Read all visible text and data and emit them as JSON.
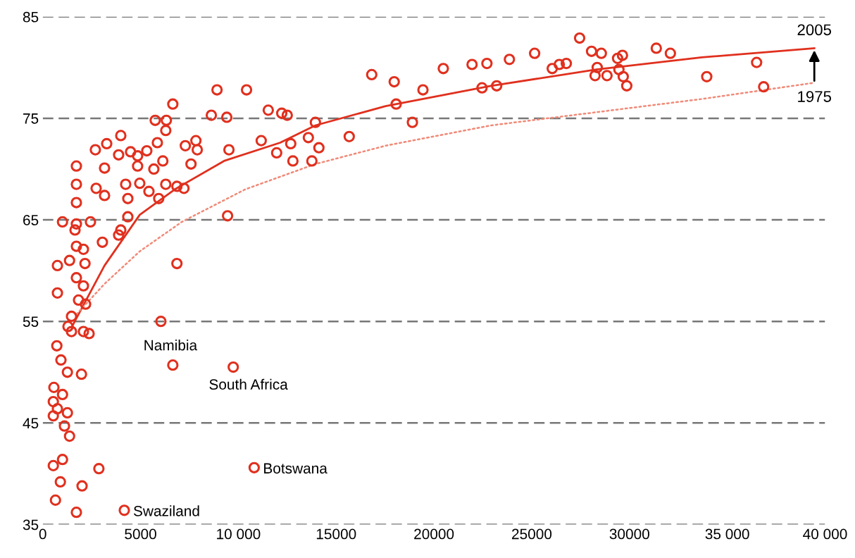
{
  "chart_data": {
    "type": "scatter",
    "xlim": [
      0,
      40000
    ],
    "ylim": [
      35,
      85
    ],
    "xticks": [
      0,
      5000,
      {
        "value": 10000,
        "label": "10 000"
      },
      15000,
      20000,
      25000,
      30000,
      {
        "value": 35000,
        "label": "35 000"
      },
      {
        "value": 40000,
        "label": "40 000"
      }
    ],
    "yticks": [
      35,
      45,
      55,
      65,
      75,
      85
    ],
    "grid": "y",
    "legend": false,
    "series": [
      {
        "color": "#e0301e",
        "marker": "circle",
        "x": [
          27450,
          28060,
          28560,
          29390,
          29640,
          28350,
          28240,
          28850,
          29460,
          29680,
          29860,
          26770,
          26050,
          26410,
          25150,
          23860,
          22710,
          21950,
          22460,
          23210,
          20480,
          19440,
          18900,
          18070,
          17970,
          16820,
          15670,
          31370,
          32090,
          33950,
          36500,
          36860,
          13940,
          13580,
          14120,
          12680,
          11960,
          12790,
          13760,
          12220,
          11530,
          12500,
          11170,
          10420,
          8910,
          9410,
          8620,
          9520,
          9450,
          6650,
          5750,
          6320,
          3990,
          2690,
          3270,
          3880,
          4490,
          4850,
          5320,
          5860,
          6140,
          6290,
          7290,
          7830,
          7900,
          7580,
          3160,
          4850,
          5680,
          1720,
          1720,
          1720,
          2730,
          3160,
          4240,
          4350,
          4960,
          5430,
          5930,
          6290,
          6860,
          7220,
          1010,
          1720,
          2440,
          1650,
          4350,
          3990,
          3050,
          3880,
          1720,
          2080,
          750,
          1370,
          2160,
          1720,
          750,
          2080,
          1830,
          2190,
          6860,
          6040,
          1470,
          1470,
          2370,
          1290,
          2080,
          6650,
          9740,
          1260,
          1980,
          570,
          1010,
          540,
          750,
          1260,
          540,
          1110,
          1370,
          1010,
          540,
          900,
          2010,
          2870,
          650,
          1720,
          4170,
          10810,
          720,
          930
        ],
        "values": [
          82.9,
          81.6,
          81.4,
          80.9,
          81.2,
          80.0,
          79.2,
          79.2,
          79.8,
          79.1,
          78.2,
          80.4,
          79.9,
          80.3,
          81.4,
          80.8,
          80.4,
          80.3,
          78.0,
          78.2,
          79.9,
          77.8,
          74.6,
          76.4,
          78.6,
          79.3,
          73.2,
          81.9,
          81.4,
          79.1,
          80.5,
          78.1,
          74.6,
          73.1,
          72.1,
          72.5,
          71.6,
          70.8,
          70.8,
          75.5,
          75.8,
          75.3,
          72.8,
          77.8,
          77.8,
          75.1,
          75.3,
          71.9,
          65.4,
          76.4,
          74.8,
          74.8,
          73.3,
          71.9,
          72.5,
          71.4,
          71.7,
          71.3,
          71.8,
          72.6,
          70.8,
          73.8,
          72.3,
          72.8,
          71.9,
          70.5,
          70.1,
          70.3,
          70.0,
          70.3,
          68.5,
          66.7,
          68.1,
          67.4,
          68.5,
          67.1,
          68.6,
          67.8,
          67.1,
          68.5,
          68.3,
          68.1,
          64.8,
          64.6,
          64.8,
          64.0,
          65.3,
          64.0,
          62.8,
          63.5,
          62.4,
          62.1,
          60.5,
          61.0,
          60.7,
          59.3,
          57.8,
          58.5,
          57.1,
          56.7,
          60.7,
          55.0,
          55.5,
          54.0,
          53.8,
          54.5,
          54.0,
          50.7,
          50.5,
          50.0,
          49.8,
          48.5,
          47.8,
          47.1,
          46.4,
          46.0,
          45.7,
          44.7,
          43.7,
          41.4,
          40.8,
          39.2,
          38.8,
          40.5,
          37.4,
          36.2,
          36.4,
          40.6,
          52.6,
          51.2
        ]
      },
      {
        "type": "line",
        "color": "#e0301e",
        "marker": "none",
        "line_style": "solid",
        "x": [
          1470,
          3160,
          4960,
          6750,
          9270,
          12140,
          13940,
          17530,
          22920,
          28310,
          33700,
          39450
        ],
        "values": [
          54.4,
          60.5,
          65.5,
          68.0,
          70.8,
          72.6,
          74.3,
          76.2,
          78.2,
          79.8,
          81.0,
          81.9
        ]
      },
      {
        "type": "line",
        "color": "#f08a78",
        "marker": "none",
        "line_style": "dotted",
        "x": [
          1720,
          3160,
          4960,
          7110,
          10350,
          13940,
          17530,
          22920,
          28310,
          33700,
          39450
        ],
        "values": [
          55.7,
          58.7,
          61.9,
          64.8,
          68.0,
          70.5,
          72.3,
          74.3,
          75.6,
          76.9,
          78.5
        ]
      }
    ],
    "annotations": [
      {
        "text": "2005",
        "x": 39450,
        "y": 81.9
      },
      {
        "text": "1975",
        "x": 39450,
        "y": 78.5
      },
      {
        "text": "Namibia",
        "x": 6650,
        "y": 50.7
      },
      {
        "text": "South Africa",
        "x": 9740,
        "y": 50.5
      },
      {
        "text": "Botswana",
        "x": 10810,
        "y": 40.6
      },
      {
        "text": "Swaziland",
        "x": 4170,
        "y": 36.4
      }
    ]
  }
}
